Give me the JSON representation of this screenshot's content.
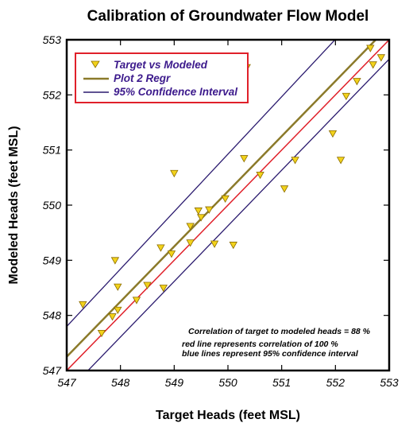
{
  "chart_data": {
    "type": "scatter",
    "title": "Calibration of Groundwater Flow Model",
    "xlabel": "Target Heads (feet MSL)",
    "ylabel": "Modeled Heads (feet MSL)",
    "xlim": [
      547,
      553
    ],
    "ylim": [
      547,
      553
    ],
    "xticks": [
      "547",
      "548",
      "549",
      "550",
      "551",
      "552",
      "553"
    ],
    "yticks": [
      "547",
      "548",
      "549",
      "550",
      "551",
      "552",
      "553"
    ],
    "grid": false,
    "legend_position": "top-left",
    "legend": [
      {
        "label": "Target  vs Modeled",
        "kind": "marker",
        "color": "#f2d21b"
      },
      {
        "label": "Plot 2 Regr",
        "kind": "line",
        "color": "#8b7a2a"
      },
      {
        "label": "95% Confidence Interval",
        "kind": "line",
        "color": "#2a1a6e"
      }
    ],
    "series": [
      {
        "name": "Target  vs Modeled",
        "points": [
          [
            547.3,
            548.2
          ],
          [
            547.65,
            547.68
          ],
          [
            547.85,
            547.98
          ],
          [
            547.9,
            549.0
          ],
          [
            547.95,
            548.1
          ],
          [
            547.95,
            548.52
          ],
          [
            548.3,
            548.28
          ],
          [
            548.5,
            548.55
          ],
          [
            548.75,
            549.23
          ],
          [
            548.8,
            548.5
          ],
          [
            548.95,
            549.12
          ],
          [
            549.0,
            550.58
          ],
          [
            549.3,
            549.32
          ],
          [
            549.3,
            549.62
          ],
          [
            549.45,
            549.9
          ],
          [
            549.5,
            549.78
          ],
          [
            549.65,
            549.92
          ],
          [
            549.75,
            549.3
          ],
          [
            549.95,
            550.12
          ],
          [
            550.1,
            549.28
          ],
          [
            550.3,
            550.85
          ],
          [
            550.35,
            552.5
          ],
          [
            550.6,
            550.55
          ],
          [
            551.05,
            550.3
          ],
          [
            551.25,
            550.82
          ],
          [
            551.95,
            551.3
          ],
          [
            552.1,
            550.82
          ],
          [
            552.2,
            551.98
          ],
          [
            552.4,
            552.25
          ],
          [
            552.65,
            552.85
          ],
          [
            552.7,
            552.55
          ],
          [
            552.85,
            552.68
          ]
        ]
      }
    ],
    "regression": {
      "name": "Plot 2 Regr",
      "color": "#8b7a2a",
      "from": [
        547,
        547.25
      ],
      "to": [
        553,
        553.25
      ]
    },
    "confidence_interval": {
      "name": "95% Confidence Interval",
      "color": "#2a1a6e",
      "upper": {
        "from": [
          547,
          547.8
        ],
        "to": [
          553,
          554.05
        ]
      },
      "lower": {
        "from": [
          547,
          546.6
        ],
        "to": [
          553,
          552.65
        ]
      }
    },
    "reference_line": {
      "color": "#e0202a",
      "from": [
        547,
        547
      ],
      "to": [
        553,
        553
      ]
    },
    "annotations": [
      "Correlation of target to modeled heads = 88 %",
      "red line represents correlation of 100 %",
      "blue lines represent 95% confidence interval"
    ]
  }
}
